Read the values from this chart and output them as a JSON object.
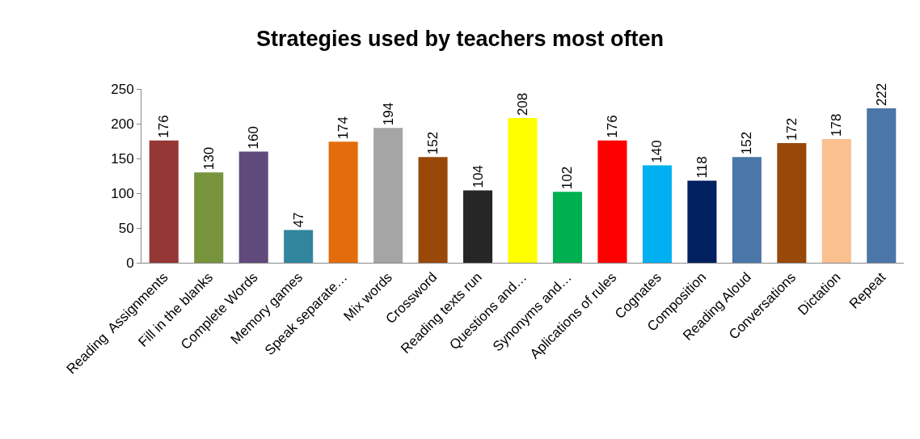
{
  "chart_data": {
    "type": "bar",
    "title": "Strategies used by teachers most often",
    "categories": [
      "Reading  Assignments",
      "Fill in the blanks",
      "Complete Words",
      "Memory games",
      "Speak separate…",
      "Mix words",
      "Crossword",
      "Reading texts run",
      "Questions and…",
      "Synonyms and…",
      "Aplications of rules",
      "Cognates",
      "Composition",
      "Reading Aloud",
      "Conversations",
      "Dictation",
      "Repeat"
    ],
    "values": [
      176,
      130,
      160,
      47,
      174,
      194,
      152,
      104,
      208,
      102,
      176,
      140,
      118,
      152,
      172,
      178,
      222
    ],
    "colors": [
      "#953735",
      "#77933c",
      "#604a7b",
      "#31859c",
      "#e46c0a",
      "#a5a5a5",
      "#984807",
      "#262626",
      "#ffff00",
      "#00b050",
      "#ff0000",
      "#00b0f0",
      "#002060",
      "#4a76a8",
      "#984807",
      "#fac090",
      "#4a76a8"
    ],
    "ylim": [
      0,
      250
    ],
    "yticks": [
      0,
      50,
      100,
      150,
      200,
      250
    ],
    "data_labels": true
  }
}
